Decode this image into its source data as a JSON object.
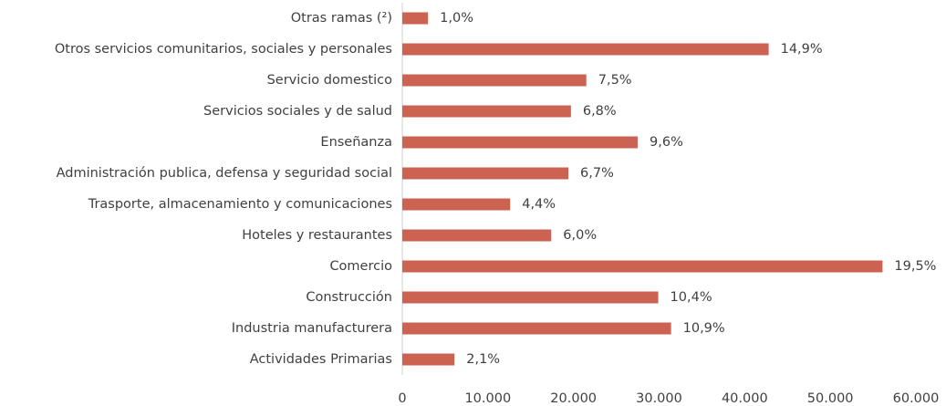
{
  "chart_data": {
    "type": "hbar",
    "categories": [
      "Otras ramas (²)",
      "Otros servicios comunitarios, sociales y personales",
      "Servicio domestico",
      "Servicios sociales y de salud",
      "Enseñanza",
      "Administración publica, defensa y seguridad social",
      "Trasporte, almacenamiento y comunicaciones",
      "Hoteles y restaurantes",
      "Comercio",
      "Construcción",
      "Industria manufacturera",
      "Actividades Primarias"
    ],
    "values": [
      3000,
      42800,
      21500,
      19700,
      27500,
      19400,
      12600,
      17400,
      56100,
      29900,
      31400,
      6100
    ],
    "data_labels": [
      "1,0%",
      "14,9%",
      "7,5%",
      "6,8%",
      "9,6%",
      "6,7%",
      "4,4%",
      "6,0%",
      "19,5%",
      "10,4%",
      "10,9%",
      "2,1%"
    ],
    "color": "#cc6352",
    "xlim": [
      0,
      60000
    ],
    "xticks": [
      {
        "value": 0,
        "label": "0"
      },
      {
        "value": 10000,
        "label": "10.000"
      },
      {
        "value": 20000,
        "label": "20.000"
      },
      {
        "value": 30000,
        "label": "30.000"
      },
      {
        "value": 40000,
        "label": "40.000"
      },
      {
        "value": 50000,
        "label": "50.000"
      },
      {
        "value": 60000,
        "label": "60.000"
      }
    ],
    "grid": false
  }
}
